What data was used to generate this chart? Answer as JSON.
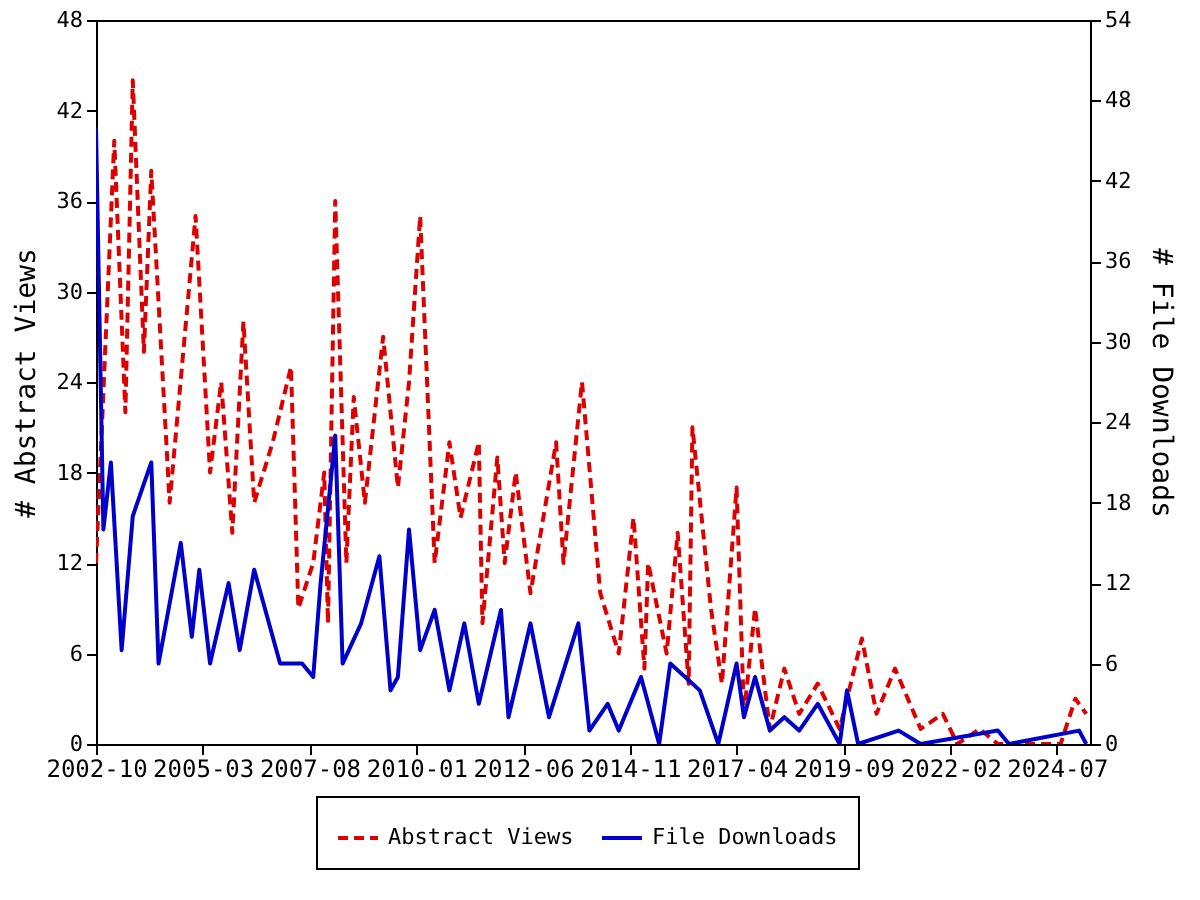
{
  "chart_data": {
    "type": "line",
    "ylabel": "# Abstract Views",
    "y2label": "# File Downloads",
    "xlim": [
      "2002-10",
      "2025-04"
    ],
    "xticks": [
      "2002-10",
      "2005-03",
      "2007-08",
      "2010-01",
      "2012-06",
      "2014-11",
      "2017-04",
      "2019-09",
      "2022-02",
      "2024-07"
    ],
    "ylim": [
      0,
      48
    ],
    "yticks": [
      0,
      6,
      12,
      18,
      24,
      30,
      36,
      42,
      48
    ],
    "y2lim": [
      0,
      54
    ],
    "y2ticks": [
      0,
      6,
      12,
      18,
      24,
      30,
      36,
      42,
      48,
      54
    ],
    "grid": false,
    "legend": "bottom",
    "series": [
      {
        "name": "Abstract Views",
        "color": "#dd0000",
        "line_style": "dashed",
        "x": [
          "2002-10",
          "2003-03",
          "2003-06",
          "2003-08",
          "2003-11",
          "2004-01",
          "2004-06",
          "2005-01",
          "2005-05",
          "2005-08",
          "2005-11",
          "2006-02",
          "2006-05",
          "2006-10",
          "2007-03",
          "2007-05",
          "2007-09",
          "2007-12",
          "2008-01",
          "2008-03",
          "2008-06",
          "2008-08",
          "2008-11",
          "2009-04",
          "2009-08",
          "2009-11",
          "2010-02",
          "2010-06",
          "2010-10",
          "2011-01",
          "2011-06",
          "2011-07",
          "2011-11",
          "2012-01",
          "2012-04",
          "2012-08",
          "2013-03",
          "2013-05",
          "2013-10",
          "2014-03",
          "2014-08",
          "2014-12",
          "2015-03",
          "2015-04",
          "2015-09",
          "2015-12",
          "2016-03",
          "2016-04",
          "2016-09",
          "2016-12",
          "2017-04",
          "2017-06",
          "2017-09",
          "2018-01",
          "2018-05",
          "2018-09",
          "2019-02",
          "2019-08",
          "2020-02",
          "2020-06",
          "2020-11",
          "2021-06",
          "2021-12",
          "2022-04",
          "2022-10",
          "2023-03",
          "2024-08",
          "2024-12",
          "2025-03"
        ],
        "values": [
          12,
          40,
          22,
          44,
          26,
          38,
          16,
          35,
          18,
          24,
          14,
          28,
          16,
          20,
          25,
          9,
          12,
          18,
          8,
          36,
          12,
          23,
          16,
          27,
          17,
          24,
          35,
          12,
          20,
          15,
          20,
          8,
          19,
          12,
          18,
          10,
          20,
          12,
          24,
          10,
          6,
          15,
          5,
          12,
          6,
          14,
          4,
          21,
          9,
          4,
          17,
          2,
          9,
          1,
          5,
          2,
          4,
          1,
          7,
          2,
          5,
          1,
          2,
          0,
          1,
          0,
          0,
          3,
          2
        ]
      },
      {
        "name": "File Downloads",
        "color": "#0000cc",
        "line_style": "solid",
        "axis": "y2",
        "x": [
          "2002-10",
          "2002-12",
          "2003-02",
          "2003-05",
          "2003-08",
          "2004-01",
          "2004-03",
          "2004-09",
          "2004-12",
          "2005-02",
          "2005-05",
          "2005-10",
          "2006-01",
          "2006-05",
          "2006-12",
          "2007-06",
          "2007-09",
          "2007-11",
          "2008-03",
          "2008-05",
          "2008-10",
          "2009-03",
          "2009-06",
          "2009-08",
          "2009-11",
          "2010-02",
          "2010-06",
          "2010-10",
          "2011-02",
          "2011-06",
          "2011-12",
          "2012-02",
          "2012-08",
          "2013-01",
          "2013-09",
          "2013-12",
          "2014-05",
          "2014-08",
          "2015-02",
          "2015-07",
          "2015-10",
          "2016-06",
          "2016-11",
          "2017-04",
          "2017-06",
          "2017-09",
          "2018-01",
          "2018-05",
          "2018-09",
          "2019-02",
          "2019-08",
          "2019-10",
          "2020-01",
          "2020-12",
          "2021-06",
          "2023-03",
          "2023-06",
          "2025-01",
          "2025-03"
        ],
        "values": [
          46,
          16,
          21,
          7,
          17,
          21,
          6,
          15,
          8,
          13,
          6,
          12,
          7,
          13,
          6,
          6,
          5,
          12,
          23,
          6,
          9,
          14,
          4,
          5,
          16,
          7,
          10,
          4,
          9,
          3,
          10,
          2,
          9,
          2,
          9,
          1,
          3,
          1,
          5,
          0,
          6,
          4,
          0,
          6,
          2,
          5,
          1,
          2,
          1,
          3,
          0,
          4,
          0,
          1,
          0,
          1,
          0,
          1,
          0
        ]
      }
    ]
  }
}
